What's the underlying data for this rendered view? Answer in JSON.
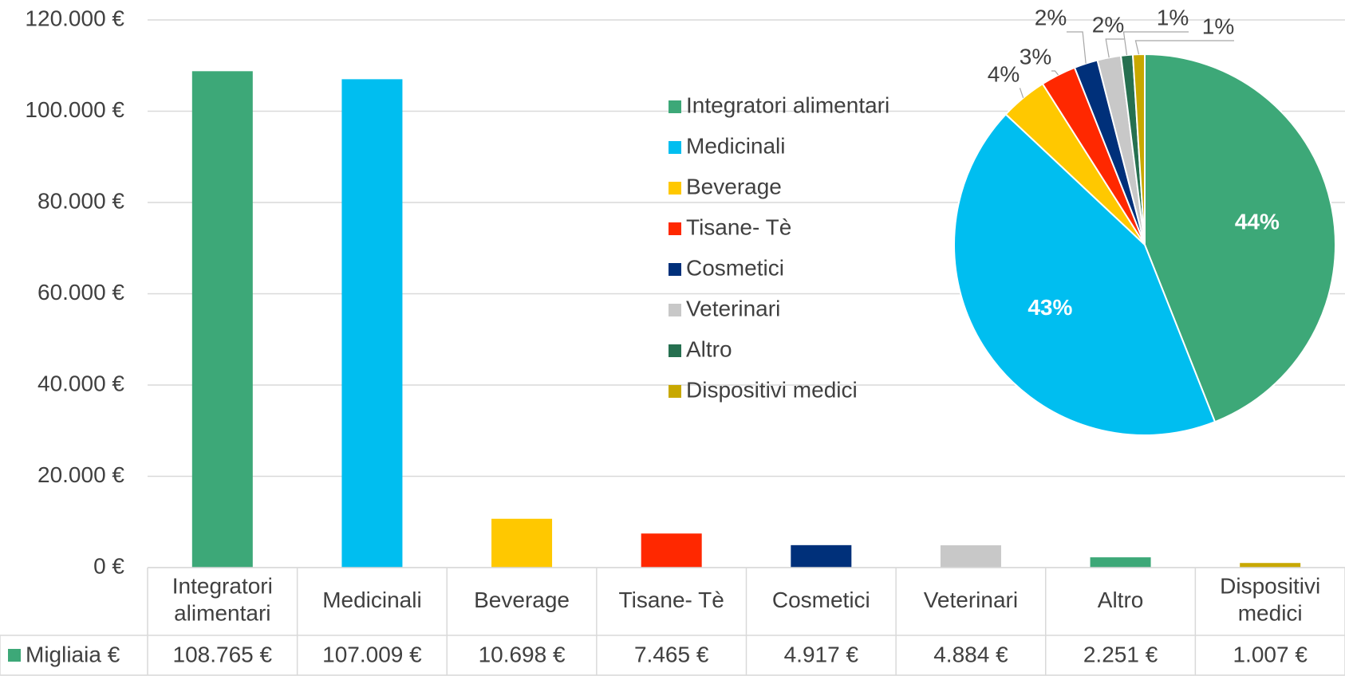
{
  "chart_data": [
    {
      "type": "bar",
      "categories": [
        "Integratori alimentari",
        "Medicinali",
        "Beverage",
        "Tisane- Tè",
        "Cosmetici",
        "Veterinari",
        "Altro",
        "Dispositivi medici"
      ],
      "series": [
        {
          "name": "Migliaia €",
          "color": "#3da878",
          "values": [
            108765,
            107009,
            10698,
            7465,
            4917,
            4884,
            2251,
            1007
          ],
          "value_labels": [
            "108.765 €",
            "107.009 €",
            "10.698 €",
            "7.465 €",
            "4.917 €",
            "4.884 €",
            "2.251 €",
            "1.007 €"
          ]
        }
      ],
      "colors": [
        "#3da878",
        "#00bef0",
        "#ffc800",
        "#ff2800",
        "#00307a",
        "#c8c8c8",
        "#3da878",
        "#c8a800"
      ],
      "ylim": [
        0,
        120000
      ],
      "yticks": [
        {
          "value": 0,
          "label": "0 €"
        },
        {
          "value": 20000,
          "label": "20.000 €"
        },
        {
          "value": 40000,
          "label": "40.000 €"
        },
        {
          "value": 60000,
          "label": "60.000 €"
        },
        {
          "value": 80000,
          "label": "80.000 €"
        },
        {
          "value": 100000,
          "label": "100.000 €"
        },
        {
          "value": 120000,
          "label": "120.000 €"
        }
      ],
      "grid": true
    },
    {
      "type": "pie",
      "categories": [
        "Integratori alimentari",
        "Medicinali",
        "Beverage",
        "Tisane- Tè",
        "Cosmetici",
        "Veterinari",
        "Altro",
        "Dispositivi medici"
      ],
      "values": [
        44,
        43,
        4,
        3,
        2,
        2,
        1,
        1
      ],
      "value_labels": [
        "44%",
        "43%",
        "4%",
        "3%",
        "2%",
        "2%",
        "1%",
        "1%"
      ],
      "colors": [
        "#3da878",
        "#00bef0",
        "#ffc800",
        "#ff2800",
        "#00307a",
        "#c8c8c8",
        "#267050",
        "#c8a800"
      ],
      "legend": "left"
    }
  ]
}
